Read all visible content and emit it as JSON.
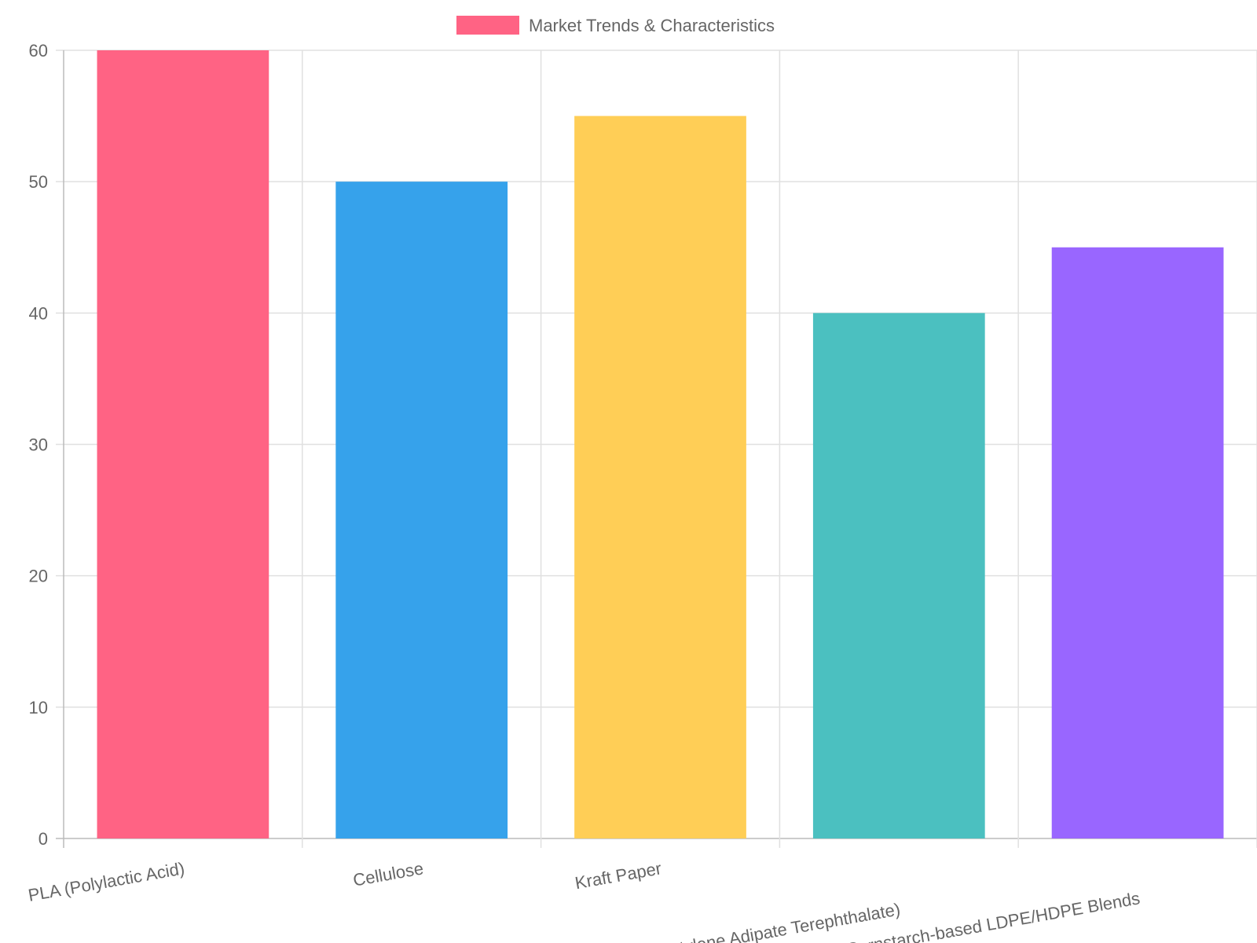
{
  "chart_data": {
    "type": "bar",
    "legend": {
      "label": "Market Trends & Characteristics",
      "position": "top",
      "swatch_color": "#FF6384"
    },
    "categories": [
      "PLA (Polylactic Acid)",
      "Cellulose",
      "Kraft Paper",
      "PBAT (Polybutylene Adipate Terephthalate)",
      "Cornstarch-based LDPE/HDPE Blends"
    ],
    "series": [
      {
        "name": "Market Trends & Characteristics",
        "values": [
          60,
          50,
          55,
          40,
          45
        ],
        "colors": [
          "#FF6384",
          "#36A2EB",
          "#FFCE56",
          "#4BC0C0",
          "#9966FF"
        ]
      }
    ],
    "ylim": [
      0,
      60
    ],
    "yticks": [
      "0",
      "10",
      "20",
      "30",
      "40",
      "50",
      "60"
    ],
    "grid": true
  }
}
